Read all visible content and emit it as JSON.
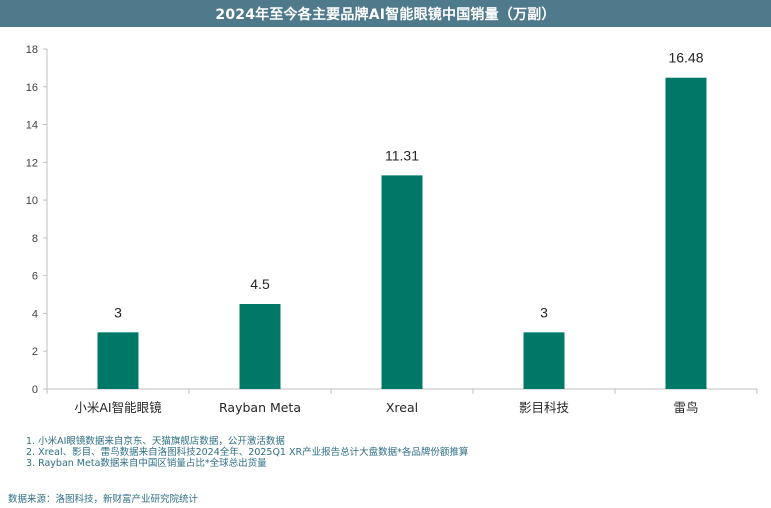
{
  "chart_data": {
    "type": "bar",
    "title": "2024年至今各主要品牌AI智能眼镜中国销量（万副）",
    "categories": [
      "小米AI智能眼镜",
      "Rayban Meta",
      "Xreal",
      "影目科技",
      "雷鸟"
    ],
    "values": [
      3,
      4.5,
      11.31,
      3,
      16.48
    ],
    "data_labels": [
      "3",
      "4.5",
      "11.31",
      "3",
      "16.48"
    ],
    "ylim": [
      0,
      18
    ],
    "yticks": [
      0,
      2,
      4,
      6,
      8,
      10,
      12,
      14,
      16,
      18
    ],
    "xlabel": "",
    "ylabel": "",
    "grid": false,
    "bar_color": "#007868"
  },
  "notes": [
    "1. 小米AI眼镜数据来自京东、天猫旗舰店数据，公开激活数据",
    "2. Xreal、影目、雷鸟数据来自洛图科技2024全年、2025Q1 XR产业报告总计大盘数据*各品牌份额推算",
    "3. Rayban Meta数据来自中国区销量占比*全球总出货量"
  ],
  "source": "数据来源：洛图科技，新财富产业研究院统计",
  "colors": {
    "title_bg": "#4f7a8c",
    "note_text": "#2f6f86"
  }
}
